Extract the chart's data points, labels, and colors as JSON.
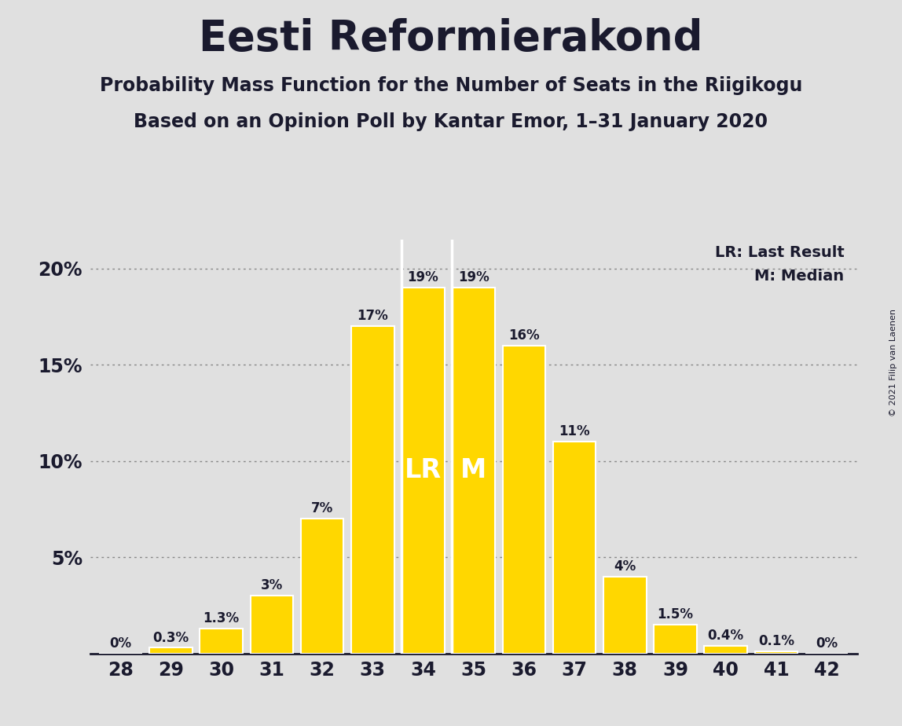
{
  "title": "Eesti Reformierakond",
  "subtitle1": "Probability Mass Function for the Number of Seats in the Riigikogu",
  "subtitle2": "Based on an Opinion Poll by Kantar Emor, 1–31 January 2020",
  "copyright": "© 2021 Filip van Laenen",
  "categories": [
    28,
    29,
    30,
    31,
    32,
    33,
    34,
    35,
    36,
    37,
    38,
    39,
    40,
    41,
    42
  ],
  "values": [
    0.001,
    0.3,
    1.3,
    3.0,
    7.0,
    17.0,
    19.0,
    19.0,
    16.0,
    11.0,
    4.0,
    1.5,
    0.4,
    0.1,
    0.001
  ],
  "labels": [
    "0%",
    "0.3%",
    "1.3%",
    "3%",
    "7%",
    "17%",
    "19%",
    "19%",
    "16%",
    "11%",
    "4%",
    "1.5%",
    "0.4%",
    "0.1%",
    "0%"
  ],
  "bar_color": "#FFD700",
  "bar_edge_color": "#FFFFFF",
  "lr_seat": 34,
  "median_seat": 35,
  "lr_label": "LR",
  "median_label": "M",
  "legend_lr": "LR: Last Result",
  "legend_m": "M: Median",
  "background_color": "#E0E0E0",
  "plot_background_color": "#E0E0E0",
  "title_fontsize": 38,
  "subtitle_fontsize": 17,
  "ylabel_ticks": [
    "",
    "5%",
    "10%",
    "15%",
    "20%"
  ],
  "ytick_values": [
    0,
    5,
    10,
    15,
    20
  ],
  "ylim": [
    0,
    21.5
  ],
  "text_color": "#1a1a2e",
  "grid_color": "#888888"
}
